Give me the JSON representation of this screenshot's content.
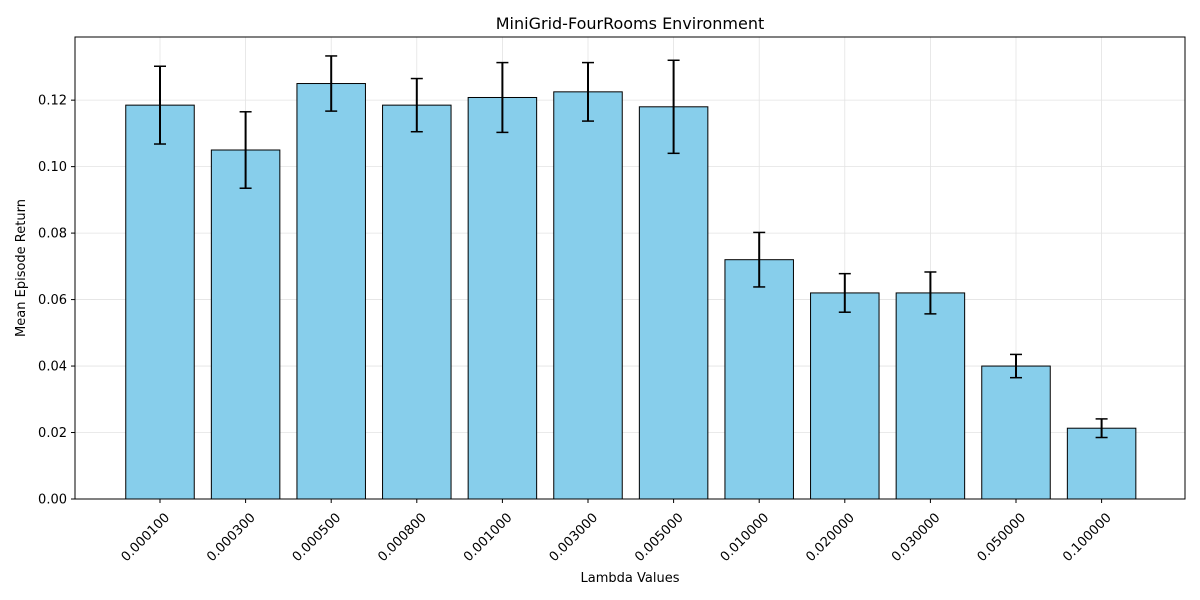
{
  "chart_data": {
    "type": "bar",
    "title": "MiniGrid-FourRooms Environment",
    "xlabel": "Lambda Values",
    "ylabel": "Mean Episode Return",
    "categories": [
      "0.000100",
      "0.000300",
      "0.000500",
      "0.000800",
      "0.001000",
      "0.003000",
      "0.005000",
      "0.010000",
      "0.020000",
      "0.030000",
      "0.050000",
      "0.100000"
    ],
    "values": [
      0.1185,
      0.105,
      0.125,
      0.1185,
      0.1208,
      0.1225,
      0.118,
      0.072,
      0.062,
      0.062,
      0.04,
      0.0213
    ],
    "errors": [
      0.0117,
      0.0115,
      0.0083,
      0.008,
      0.0105,
      0.0088,
      0.014,
      0.0082,
      0.0058,
      0.0063,
      0.0035,
      0.0028
    ],
    "yticks": [
      "0.00",
      "0.02",
      "0.04",
      "0.06",
      "0.08",
      "0.10",
      "0.12"
    ],
    "ylim": [
      0,
      0.139
    ],
    "grid": true,
    "bar_color": "#87ceeb",
    "edge_color": "#000000"
  }
}
